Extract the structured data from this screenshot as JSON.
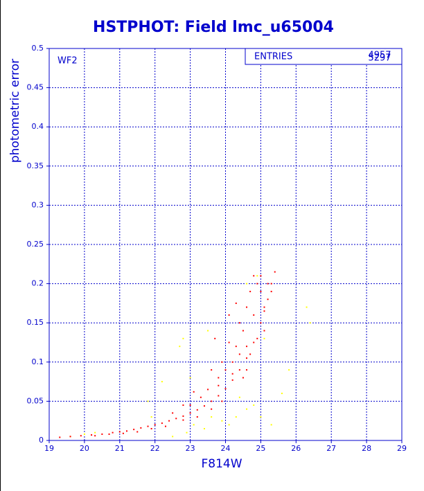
{
  "chart_data": {
    "type": "scatter",
    "title": "HSTPHOT: Field lmc_u65004",
    "xlabel": "F814W",
    "ylabel": "photometric error",
    "annotation": "WF2",
    "stats": {
      "label": "ENTRIES",
      "values": [
        "4957",
        "5297"
      ]
    },
    "xlim": [
      19,
      29
    ],
    "ylim": [
      0,
      0.5
    ],
    "xticks": [
      19,
      20,
      21,
      22,
      23,
      24,
      25,
      26,
      27,
      28,
      29
    ],
    "yticks": [
      0,
      0.05,
      0.1,
      0.15,
      0.2,
      0.25,
      0.3,
      0.35,
      0.4,
      0.45,
      0.5
    ],
    "grid": true,
    "series": [
      {
        "color": "#ff0000",
        "x": [
          19.3,
          19.6,
          19.9,
          20.2,
          20.5,
          20.8,
          21.0,
          21.2,
          21.4,
          21.6,
          21.8,
          22.0,
          22.2,
          22.4,
          22.6,
          22.8,
          23.0,
          23.2,
          23.4,
          23.6,
          23.8,
          24.0,
          24.2,
          24.4,
          24.6,
          24.8,
          25.0,
          25.1,
          25.2,
          25.3,
          25.4,
          22.5,
          23.0,
          23.3,
          23.5,
          23.8,
          24.0,
          24.2,
          24.3,
          24.5,
          24.6,
          24.7,
          24.8,
          24.9,
          25.0,
          24.5,
          24.7,
          24.9,
          25.1,
          23.9,
          23.6,
          23.2,
          22.8,
          22.3,
          21.9,
          21.5,
          21.1,
          20.7,
          20.3,
          23.1,
          23.6,
          24.1,
          22.8,
          24.4,
          23.7,
          24.1,
          24.3,
          23.8,
          24.2,
          24.6,
          25.2,
          25.3,
          25.0,
          24.6,
          24.8,
          25.1,
          24.4,
          23.9
        ],
        "y": [
          0.004,
          0.005,
          0.006,
          0.007,
          0.008,
          0.01,
          0.011,
          0.012,
          0.014,
          0.016,
          0.018,
          0.02,
          0.022,
          0.025,
          0.028,
          0.031,
          0.035,
          0.039,
          0.044,
          0.05,
          0.057,
          0.066,
          0.077,
          0.09,
          0.105,
          0.125,
          0.15,
          0.165,
          0.18,
          0.2,
          0.215,
          0.035,
          0.045,
          0.055,
          0.065,
          0.08,
          0.09,
          0.1,
          0.12,
          0.14,
          0.17,
          0.19,
          0.21,
          0.2,
          0.19,
          0.08,
          0.11,
          0.13,
          0.14,
          0.05,
          0.04,
          0.03,
          0.026,
          0.018,
          0.015,
          0.011,
          0.009,
          0.008,
          0.006,
          0.062,
          0.09,
          0.125,
          0.045,
          0.15,
          0.13,
          0.16,
          0.175,
          0.07,
          0.085,
          0.12,
          0.2,
          0.19,
          0.21,
          0.09,
          0.16,
          0.17,
          0.11,
          0.1
        ]
      },
      {
        "color": "#ffff00",
        "x": [
          22.5,
          22.9,
          23.1,
          23.4,
          23.6,
          23.9,
          24.1,
          24.3,
          24.6,
          24.8,
          25.0,
          25.3,
          25.6,
          25.8,
          26.3,
          26.4,
          25.1,
          24.9,
          24.6,
          22.8,
          22.7,
          23.5,
          21.8,
          21.9,
          22.2,
          20.3,
          20.0,
          19.6,
          23.0,
          24.4
        ],
        "y": [
          0.005,
          0.01,
          0.02,
          0.015,
          0.03,
          0.025,
          0.02,
          0.03,
          0.04,
          0.045,
          0.03,
          0.02,
          0.06,
          0.09,
          0.17,
          0.15,
          0.13,
          0.21,
          0.2,
          0.13,
          0.12,
          0.14,
          0.05,
          0.03,
          0.075,
          0.01,
          0.008,
          0.005,
          0.08,
          0.055
        ]
      }
    ]
  }
}
